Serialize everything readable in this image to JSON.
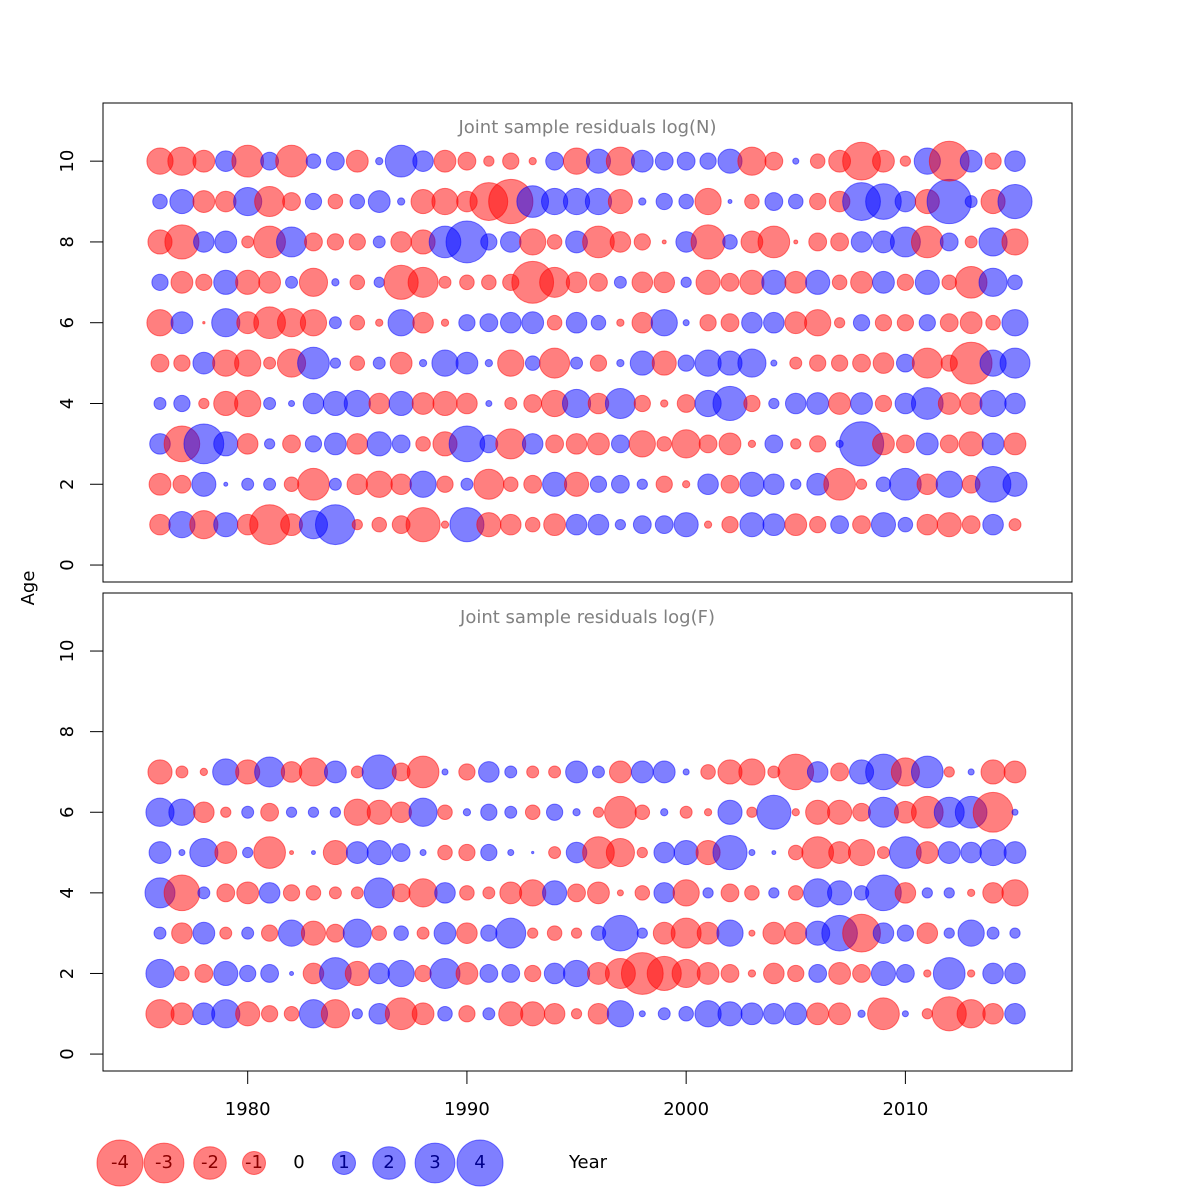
{
  "axis_labels": {
    "x": "Year",
    "y": "Age"
  },
  "colors": {
    "negative": "#ff0000",
    "positive": "#0000ff"
  },
  "opacity": 0.5,
  "legend": {
    "values": [
      -4,
      -3,
      -2,
      -1,
      0,
      1,
      2,
      3,
      4
    ]
  },
  "chart_data": [
    {
      "type": "bubble",
      "title": "Joint sample residuals log(N)",
      "x": [
        1976,
        1977,
        1978,
        1979,
        1980,
        1981,
        1982,
        1983,
        1984,
        1985,
        1986,
        1987,
        1988,
        1989,
        1990,
        1991,
        1992,
        1993,
        1994,
        1995,
        1996,
        1997,
        1998,
        1999,
        2000,
        2001,
        2002,
        2003,
        2004,
        2005,
        2006,
        2007,
        2008,
        2009,
        2010,
        2011,
        2012,
        2013,
        2014,
        2015
      ],
      "ages": [
        1,
        2,
        3,
        4,
        5,
        6,
        7,
        8,
        9,
        10
      ],
      "values": [
        [
          -0.8,
          1.3,
          -1.5,
          1.1,
          -0.8,
          -3,
          -0.9,
          1.5,
          3,
          -0.2,
          -0.4,
          -0.6,
          -2.2,
          -0.1,
          2.2,
          -1.1,
          -0.8,
          -0.4,
          -0.9,
          0.8,
          0.8,
          0.2,
          0.6,
          0.6,
          1.1,
          -0.1,
          -0.5,
          1.1,
          0.9,
          -0.9,
          -0.5,
          0.6,
          -0.6,
          1.1,
          0.4,
          -0.8,
          -1.1,
          -0.6,
          0.8,
          -0.27
        ],
        [
          -0.9,
          -0.6,
          1.1,
          0.03,
          0.27,
          0.27,
          -0.4,
          -1.9,
          0.27,
          -0.8,
          -1.3,
          -0.8,
          1.3,
          -0.5,
          0.27,
          -1.7,
          -0.4,
          -0.6,
          1.1,
          -1.1,
          0.5,
          0.6,
          0.2,
          -0.5,
          -0.1,
          0.8,
          -0.6,
          1.1,
          0.8,
          0.2,
          0.9,
          -1.9,
          -0.2,
          0.4,
          1.9,
          -0.8,
          1.3,
          -0.6,
          2.4,
          1.1
        ],
        [
          0.8,
          -2.4,
          3,
          1.1,
          -0.8,
          0.2,
          -0.6,
          0.5,
          0.9,
          -0.8,
          1.1,
          0.6,
          -0.4,
          -1.1,
          2.4,
          0.6,
          -1.7,
          0.8,
          -0.6,
          -0.8,
          -0.9,
          0.6,
          -1.3,
          -0.4,
          -1.5,
          -0.6,
          -0.9,
          -0.1,
          0.6,
          -0.2,
          -0.5,
          0.1,
          3.7,
          -0.9,
          -0.6,
          0.9,
          -0.6,
          -1.1,
          0.9,
          -0.9
        ],
        [
          0.27,
          0.5,
          -0.2,
          -1.1,
          -1.3,
          0.27,
          0.07,
          0.8,
          1.1,
          1.3,
          -0.8,
          1.1,
          -0.9,
          -1.1,
          -0.8,
          0.07,
          -0.27,
          -0.6,
          -1.3,
          1.5,
          -0.8,
          1.7,
          -0.5,
          -0.1,
          -0.6,
          1.3,
          2.2,
          -0.5,
          0.2,
          0.8,
          0.9,
          -0.9,
          0.9,
          -0.5,
          0.8,
          1.9,
          -0.9,
          -0.9,
          1.3,
          0.8
        ],
        [
          -0.6,
          -0.5,
          0.9,
          -1.3,
          -1.3,
          -0.27,
          -1.5,
          1.9,
          0.2,
          -0.4,
          0.27,
          -0.9,
          0.1,
          1.3,
          0.9,
          0.1,
          -1.3,
          0.4,
          -1.7,
          0.27,
          -0.5,
          0.1,
          1.1,
          -1.1,
          0.5,
          1.3,
          1.1,
          1.5,
          0.07,
          -0.27,
          -0.5,
          -0.5,
          -0.6,
          -0.8,
          0.6,
          -1.7,
          -0.5,
          -3.3,
          1.3,
          1.7
        ],
        [
          -1.3,
          0.9,
          -0.01,
          1.5,
          -0.9,
          -1.9,
          -1.5,
          -1.3,
          0.27,
          -0.4,
          -0.1,
          1.3,
          -0.8,
          -0.1,
          0.5,
          0.6,
          0.8,
          0.9,
          -0.4,
          0.8,
          0.4,
          -0.1,
          -0.8,
          1.3,
          0.07,
          -0.5,
          -0.6,
          0.8,
          0.8,
          -0.9,
          -1.3,
          -0.2,
          0.5,
          -0.5,
          -0.5,
          0.5,
          -0.6,
          -0.9,
          -0.4,
          1.3
        ],
        [
          0.5,
          -0.9,
          -0.5,
          1.1,
          -1.1,
          -0.9,
          0.27,
          -1.5,
          0.1,
          -0.4,
          0.2,
          -2.2,
          -1.7,
          -0.27,
          -0.4,
          -0.4,
          -0.5,
          -3.3,
          -1.7,
          -0.8,
          -0.6,
          0.27,
          -0.8,
          -0.8,
          0.2,
          -1.1,
          -0.6,
          -1.1,
          1.1,
          -0.9,
          1.1,
          -0.4,
          -0.9,
          0.9,
          -0.5,
          1.1,
          -0.4,
          -1.9,
          1.5,
          0.4
        ],
        [
          -1.1,
          -2.2,
          0.8,
          0.9,
          -0.27,
          -1.9,
          1.7,
          -0.6,
          -0.5,
          -0.5,
          0.27,
          -0.8,
          -1.1,
          1.9,
          3.3,
          0.5,
          0.8,
          -1.3,
          -0.4,
          0.9,
          -1.9,
          -0.8,
          -0.5,
          -0.03,
          0.8,
          -2.2,
          0.4,
          -0.9,
          -1.9,
          -0.03,
          -0.6,
          -0.6,
          0.8,
          0.9,
          1.7,
          -1.9,
          0.6,
          -0.27,
          1.5,
          -1.3
        ],
        [
          0.4,
          1.1,
          -0.9,
          -0.8,
          1.5,
          -1.7,
          -0.6,
          0.5,
          -0.4,
          0.4,
          0.9,
          0.1,
          -1.1,
          -1.3,
          -0.8,
          -2.7,
          -3.7,
          1.9,
          1.3,
          1.3,
          1.3,
          -1.1,
          0.1,
          0.5,
          0.4,
          -1.3,
          0.03,
          -0.4,
          0.6,
          0.4,
          -0.5,
          -0.8,
          2.7,
          2.4,
          0.8,
          -1.1,
          3.7,
          0.27,
          -1.1,
          2.2
        ],
        [
          -1.3,
          -1.5,
          -0.9,
          0.8,
          -1.9,
          0.6,
          -1.9,
          0.4,
          0.6,
          -0.9,
          0.1,
          1.9,
          0.8,
          -0.9,
          -0.6,
          -0.2,
          -0.5,
          -0.1,
          0.6,
          -1.3,
          1.1,
          -1.5,
          0.9,
          0.6,
          0.6,
          0.5,
          1.1,
          -1.5,
          -0.6,
          0.07,
          -0.4,
          -0.9,
          -2.7,
          -0.9,
          -0.2,
          1.3,
          -3,
          0.9,
          -0.5,
          0.8
        ]
      ],
      "xlim": [
        1973.4,
        2017.6
      ],
      "ylim": [
        -0.42,
        11.44
      ],
      "yticks": [
        0,
        2,
        4,
        6,
        8,
        10
      ]
    },
    {
      "type": "bubble",
      "title": "Joint sample residuals log(F)",
      "x": [
        1976,
        1977,
        1978,
        1979,
        1980,
        1981,
        1982,
        1983,
        1984,
        1985,
        1986,
        1987,
        1988,
        1989,
        1990,
        1991,
        1992,
        1993,
        1994,
        1995,
        1996,
        1997,
        1998,
        1999,
        2000,
        2001,
        2002,
        2003,
        2004,
        2005,
        2006,
        2007,
        2008,
        2009,
        2010,
        2011,
        2012,
        2013,
        2014,
        2015
      ],
      "ages": [
        1,
        2,
        3,
        4,
        5,
        6,
        7
      ],
      "values": [
        [
          -1.5,
          -0.9,
          0.9,
          1.5,
          -1.1,
          -0.5,
          -0.4,
          1.5,
          -1.5,
          0.2,
          0.8,
          -1.9,
          -0.9,
          0.4,
          -0.5,
          0.27,
          -1.1,
          -1.1,
          -0.8,
          -0.2,
          -0.8,
          1.3,
          0.07,
          0.27,
          0.4,
          1.3,
          1.1,
          0.9,
          0.8,
          0.9,
          -0.9,
          -0.9,
          0.1,
          -1.9,
          0.07,
          -0.2,
          -2.2,
          -1.5,
          -0.8,
          0.8
        ],
        [
          1.5,
          -0.4,
          -0.6,
          1.1,
          0.5,
          0.6,
          0.03,
          -0.8,
          1.9,
          -1.1,
          0.8,
          1.3,
          -0.5,
          1.7,
          -0.9,
          0.6,
          0.6,
          -0.5,
          0.8,
          1.3,
          -0.9,
          -1.7,
          -3.3,
          -2.2,
          -1.5,
          -0.9,
          -0.6,
          -0.1,
          -0.8,
          -0.5,
          0.6,
          -0.9,
          -0.6,
          1.1,
          0.6,
          -0.1,
          1.9,
          -0.1,
          0.8,
          0.8
        ],
        [
          0.27,
          -0.8,
          0.9,
          -0.27,
          0.27,
          -0.5,
          1.3,
          -1.1,
          -0.6,
          1.5,
          -0.4,
          0.4,
          -0.27,
          0.9,
          -0.8,
          0.5,
          1.7,
          -0.2,
          -0.4,
          -0.2,
          0.4,
          2.4,
          0.2,
          -0.9,
          -1.7,
          -0.9,
          1.3,
          -0.07,
          -0.9,
          -0.9,
          1.1,
          2.4,
          -2.7,
          0.8,
          0.5,
          -0.8,
          0.2,
          1.3,
          0.27,
          0.2
        ],
        [
          1.7,
          -2.4,
          0.27,
          -0.6,
          -0.9,
          0.8,
          -0.5,
          -0.4,
          -0.27,
          -0.27,
          1.7,
          -0.6,
          -1.5,
          0.8,
          -0.4,
          -0.27,
          -0.9,
          -1.3,
          1.1,
          -0.6,
          -0.9,
          -0.07,
          -0.4,
          0.8,
          -1.3,
          0.2,
          -0.6,
          -0.4,
          0.2,
          -0.4,
          1.5,
          1.1,
          0.4,
          2.4,
          -0.8,
          0.2,
          0.2,
          -0.1,
          -0.8,
          -1.3
        ],
        [
          0.9,
          0.07,
          1.5,
          -0.9,
          0.2,
          -1.9,
          -0.03,
          0.03,
          -1.1,
          0.9,
          1.1,
          0.6,
          0.07,
          -0.4,
          -0.5,
          0.5,
          0.07,
          0.01,
          -0.27,
          0.8,
          -1.9,
          -1.5,
          -0.2,
          0.8,
          1.1,
          -1.1,
          2.2,
          0.07,
          0.03,
          -0.4,
          -1.9,
          -0.9,
          -1.3,
          -0.27,
          1.9,
          -0.9,
          0.9,
          0.8,
          1.3,
          0.9
        ],
        [
          1.5,
          1.3,
          -0.8,
          -0.2,
          0.27,
          -0.6,
          0.2,
          0.2,
          0.2,
          -1.3,
          -1.1,
          -0.8,
          1.5,
          -0.4,
          0.1,
          0.5,
          0.27,
          -0.4,
          0.5,
          0.1,
          -0.2,
          -1.9,
          -0.4,
          0.1,
          -0.27,
          -0.1,
          1.1,
          -0.2,
          2.2,
          -0.1,
          -1.1,
          -1.1,
          -0.6,
          1.7,
          -0.9,
          -1.9,
          1.7,
          1.9,
          -3,
          0.07
        ],
        [
          -1.1,
          -0.27,
          -0.1,
          1.3,
          -1.1,
          1.7,
          -0.8,
          -1.5,
          0.9,
          -0.27,
          2.2,
          -0.6,
          -1.9,
          0.07,
          -0.5,
          0.8,
          0.27,
          -0.27,
          -0.27,
          0.9,
          0.27,
          -0.9,
          0.9,
          0.9,
          0.07,
          -0.4,
          -1.1,
          -1.3,
          -0.27,
          -2.4,
          0.8,
          -0.6,
          1.1,
          2.4,
          -1.5,
          1.9,
          -0.2,
          0.07,
          -1.1,
          -0.9
        ]
      ],
      "xlim": [
        1973.4,
        2017.6
      ],
      "ylim": [
        -0.42,
        11.44
      ],
      "yticks": [
        0,
        2,
        4,
        6,
        8,
        10
      ],
      "xticks": [
        1980,
        1990,
        2000,
        2010
      ]
    }
  ]
}
